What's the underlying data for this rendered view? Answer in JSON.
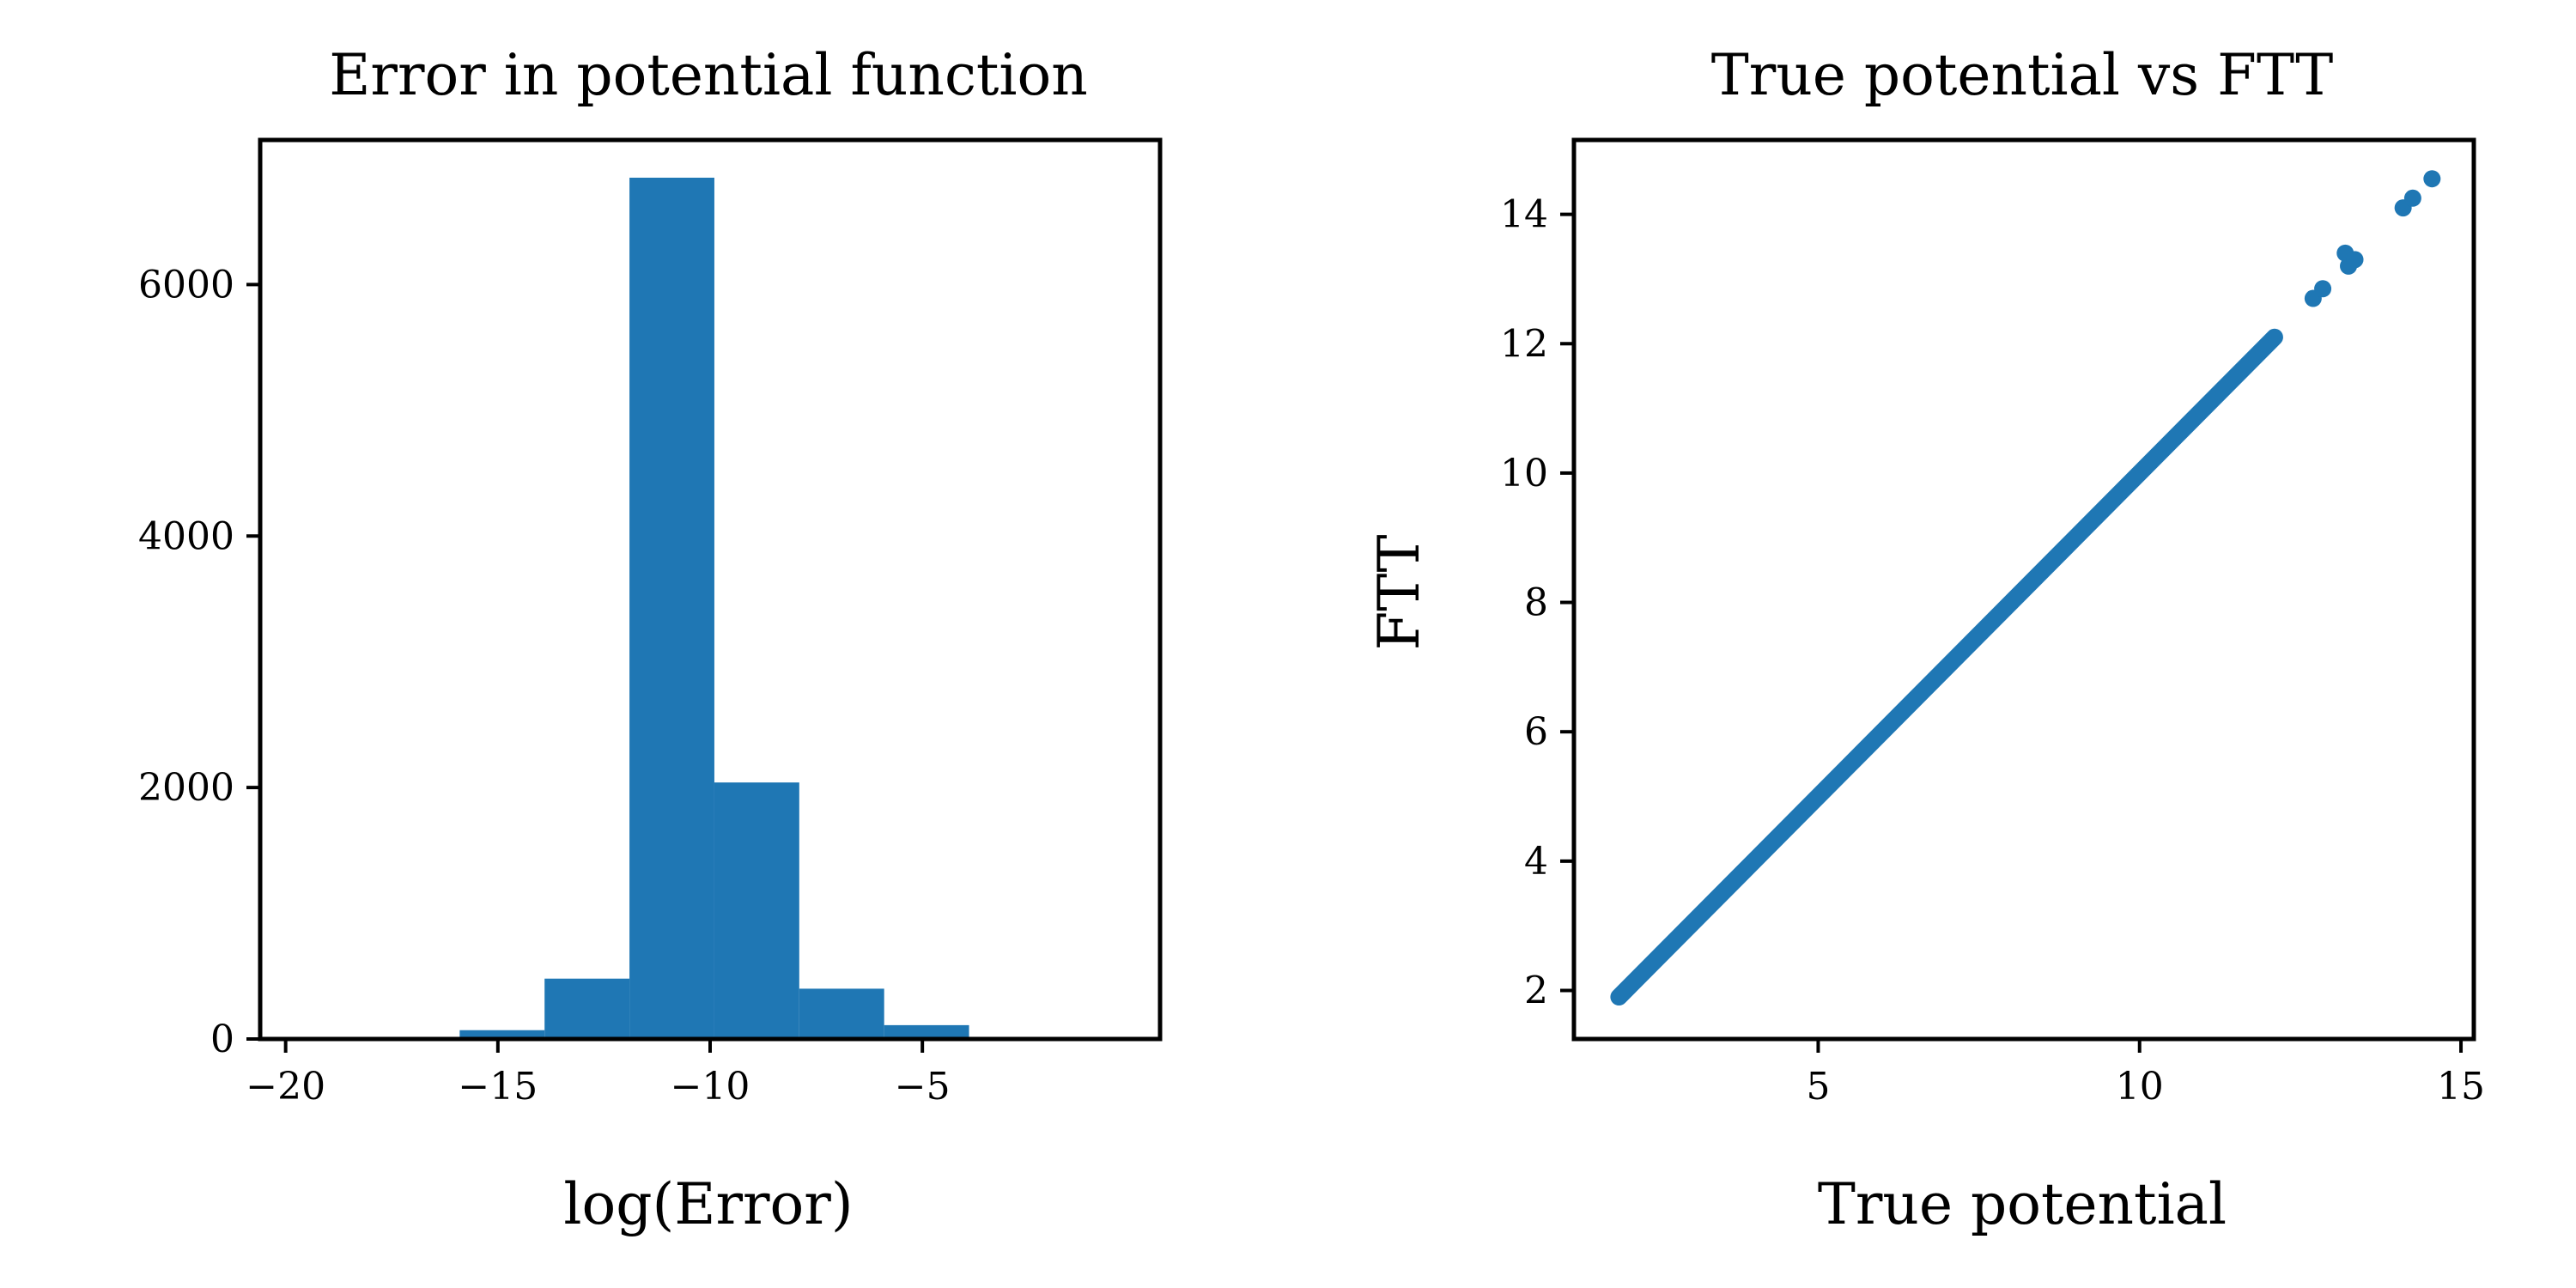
{
  "chart_data": [
    {
      "type": "bar",
      "title": "Error in potential function",
      "xlabel": "log(Error)",
      "ylabel": "",
      "xlim": [
        -20.6,
        0.6
      ],
      "ylim": [
        0,
        7150
      ],
      "xticks": [
        -20,
        -15,
        -10,
        -5
      ],
      "xtick_labels": [
        "−20",
        "−15",
        "−10",
        "−5"
      ],
      "yticks": [
        0,
        2000,
        4000,
        6000
      ],
      "ytick_labels": [
        "0",
        "2000",
        "4000",
        "6000"
      ],
      "bins": [
        {
          "x0": -19.9,
          "x1": -17.9,
          "value": 2
        },
        {
          "x0": -17.9,
          "x1": -15.9,
          "value": 5
        },
        {
          "x0": -15.9,
          "x1": -13.9,
          "value": 70
        },
        {
          "x0": -13.9,
          "x1": -11.9,
          "value": 480
        },
        {
          "x0": -11.9,
          "x1": -9.9,
          "value": 6850
        },
        {
          "x0": -9.9,
          "x1": -7.9,
          "value": 2040
        },
        {
          "x0": -7.9,
          "x1": -5.9,
          "value": 400
        },
        {
          "x0": -5.9,
          "x1": -3.9,
          "value": 110
        },
        {
          "x0": -3.9,
          "x1": -1.9,
          "value": 5
        },
        {
          "x0": -1.9,
          "x1": 0.1,
          "value": 2
        }
      ],
      "color": "#1f77b4",
      "grid": false
    },
    {
      "type": "scatter",
      "title": "True potential vs FTT",
      "xlabel": "True potential",
      "ylabel": "FTT",
      "xlim": [
        1.2,
        15.2
      ],
      "ylim": [
        1.25,
        15.15
      ],
      "xticks": [
        5,
        10,
        15
      ],
      "xtick_labels": [
        "5",
        "10",
        "15"
      ],
      "yticks": [
        2,
        4,
        6,
        8,
        10,
        12,
        14
      ],
      "ytick_labels": [
        "2",
        "4",
        "6",
        "8",
        "10",
        "12",
        "14"
      ],
      "line_segment": {
        "x_start": 1.9,
        "x_end": 12.1
      },
      "outliers": [
        {
          "x": 12.7,
          "y": 12.7
        },
        {
          "x": 12.85,
          "y": 12.85
        },
        {
          "x": 13.2,
          "y": 13.4
        },
        {
          "x": 13.25,
          "y": 13.2
        },
        {
          "x": 13.35,
          "y": 13.3
        },
        {
          "x": 14.1,
          "y": 14.1
        },
        {
          "x": 14.25,
          "y": 14.25
        },
        {
          "x": 14.55,
          "y": 14.55
        }
      ],
      "color": "#1f77b4",
      "grid": false
    }
  ]
}
